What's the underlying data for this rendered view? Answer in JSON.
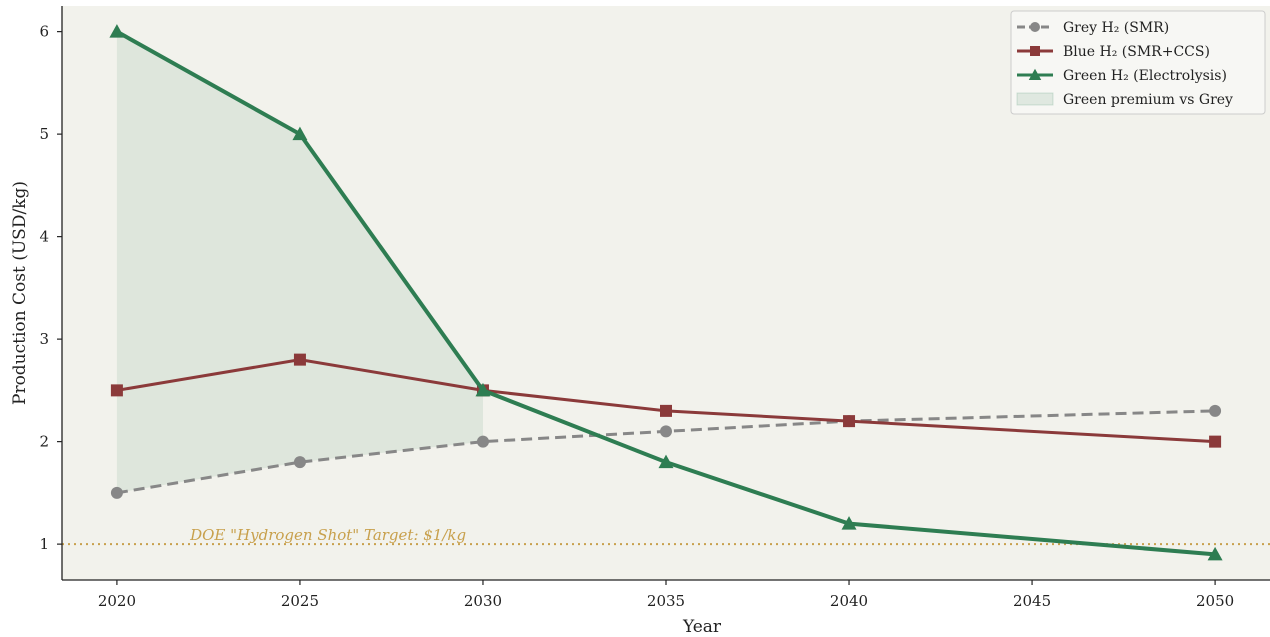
{
  "chart_data": {
    "type": "line",
    "title": "",
    "xlabel": "Year",
    "ylabel": "Production Cost (USD/kg)",
    "xlim": [
      2018.5,
      2051.5
    ],
    "ylim": [
      0.65,
      6.25
    ],
    "xticks": [
      2020,
      2025,
      2030,
      2035,
      2040,
      2045,
      2050
    ],
    "yticks": [
      1,
      2,
      3,
      4,
      5,
      6
    ],
    "x": [
      2020,
      2025,
      2030,
      2035,
      2040,
      2050
    ],
    "grid": false,
    "legend_position": "top-right",
    "background_color": "#f2f2ec",
    "series": [
      {
        "name": "Grey H₂ (SMR)",
        "values": [
          1.5,
          1.8,
          2.0,
          2.1,
          2.2,
          2.3
        ],
        "color": "#878787",
        "marker": "circle",
        "linestyle": "dashed"
      },
      {
        "name": "Blue H₂ (SMR+CCS)",
        "values": [
          2.5,
          2.8,
          2.5,
          2.3,
          2.2,
          2.0
        ],
        "color": "#8b3a3a",
        "marker": "square",
        "linestyle": "solid"
      },
      {
        "name": "Green H₂ (Electrolysis)",
        "values": [
          6.0,
          5.0,
          2.5,
          1.8,
          1.2,
          0.9
        ],
        "color": "#2e7d52",
        "marker": "triangle",
        "linestyle": "solid"
      }
    ],
    "fill_between": {
      "name": "Green premium vs Grey",
      "x": [
        2020,
        2025,
        2030
      ],
      "upper": [
        6.0,
        5.0,
        2.5
      ],
      "lower": [
        1.5,
        1.8,
        2.0
      ],
      "color": "#2e7d52",
      "opacity": 0.1
    },
    "reference_line": {
      "y": 1,
      "label": "DOE \"Hydrogen Shot\" Target: $1/kg",
      "label_x": 2022,
      "color": "#c8a04c"
    }
  }
}
